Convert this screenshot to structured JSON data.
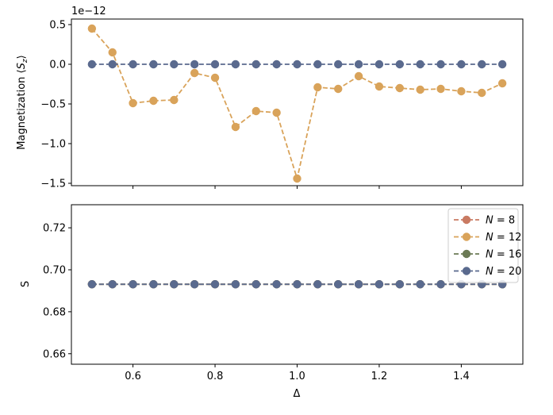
{
  "chart_data": [
    {
      "type": "line",
      "ylabel": "Magnetization ⟨S_z⟩",
      "ylabel_parts": {
        "main": "Magnetization ",
        "open": "⟨",
        "var": "S",
        "sub": "z",
        "close": "⟩"
      },
      "offset_text": "1e−12",
      "xlim": [
        0.45,
        1.55
      ],
      "ylim": [
        -1.53,
        0.57
      ],
      "yticks": [
        0.5,
        0.0,
        -0.5,
        -1.0,
        -1.5
      ],
      "ytick_labels": [
        "0.5",
        "0.0",
        "−0.5",
        "−1.0",
        "−1.5"
      ],
      "x": [
        0.5,
        0.55,
        0.6,
        0.65,
        0.7,
        0.75,
        0.8,
        0.85,
        0.9,
        0.95,
        1.0,
        1.05,
        1.1,
        1.15,
        1.2,
        1.25,
        1.3,
        1.35,
        1.4,
        1.45,
        1.5
      ],
      "series": [
        {
          "color": "#d9a35a",
          "values": [
            0.45,
            0.15,
            -0.49,
            -0.46,
            -0.45,
            -0.11,
            -0.17,
            -0.79,
            -0.59,
            -0.61,
            -1.44,
            -0.29,
            -0.31,
            -0.15,
            -0.28,
            -0.3,
            -0.32,
            -0.31,
            -0.34,
            -0.36,
            -0.24
          ]
        },
        {
          "color": "#5a6a8e",
          "values": [
            0,
            0,
            0,
            0,
            0,
            0,
            0,
            0,
            0,
            0,
            0,
            0,
            0,
            0,
            0,
            0,
            0,
            0,
            0,
            0,
            0
          ]
        }
      ]
    },
    {
      "type": "line",
      "ylabel": "S",
      "xlabel": "Δ",
      "xlim": [
        0.45,
        1.55
      ],
      "ylim": [
        0.655,
        0.731
      ],
      "xticks": [
        0.6,
        0.8,
        1.0,
        1.2,
        1.4
      ],
      "xtick_labels": [
        "0.6",
        "0.8",
        "1.0",
        "1.2",
        "1.4"
      ],
      "yticks": [
        0.72,
        0.7,
        0.68,
        0.66
      ],
      "ytick_labels": [
        "0.72",
        "0.70",
        "0.68",
        "0.66"
      ],
      "x": [
        0.5,
        0.55,
        0.6,
        0.65,
        0.7,
        0.75,
        0.8,
        0.85,
        0.9,
        0.95,
        1.0,
        1.05,
        1.1,
        1.15,
        1.2,
        1.25,
        1.3,
        1.35,
        1.4,
        1.45,
        1.5
      ],
      "legend_position": "top-right",
      "series": [
        {
          "name": "N = 8",
          "name_var": "N",
          "name_val": "8",
          "color": "#c97a62",
          "values": [
            0.6931,
            0.6931,
            0.6931,
            0.6931,
            0.6931,
            0.6931,
            0.6931,
            0.6931,
            0.6931,
            0.6931,
            0.6931,
            0.6931,
            0.6931,
            0.6931,
            0.6931,
            0.6931,
            0.6931,
            0.6931,
            0.6931,
            0.6931,
            0.6931
          ]
        },
        {
          "name": "N = 12",
          "name_var": "N",
          "name_val": "12",
          "color": "#d9a35a",
          "values": [
            0.6931,
            0.6931,
            0.6931,
            0.6931,
            0.6931,
            0.6931,
            0.6931,
            0.6931,
            0.6931,
            0.6931,
            0.6931,
            0.6931,
            0.6931,
            0.6931,
            0.6931,
            0.6931,
            0.6931,
            0.6931,
            0.6931,
            0.6931,
            0.6931
          ]
        },
        {
          "name": "N = 16",
          "name_var": "N",
          "name_val": "16",
          "color": "#6b7a55",
          "values": [
            0.6931,
            0.6931,
            0.6931,
            0.6931,
            0.6931,
            0.6931,
            0.6931,
            0.6931,
            0.6931,
            0.6931,
            0.6931,
            0.6931,
            0.6931,
            0.6931,
            0.6931,
            0.6931,
            0.6931,
            0.6931,
            0.6931,
            0.6931,
            0.6931
          ]
        },
        {
          "name": "N = 20",
          "name_var": "N",
          "name_val": "20",
          "color": "#5a6a8e",
          "values": [
            0.6931,
            0.6931,
            0.6931,
            0.6931,
            0.6931,
            0.6931,
            0.6931,
            0.6931,
            0.6931,
            0.6931,
            0.6931,
            0.6931,
            0.6931,
            0.6931,
            0.6931,
            0.6931,
            0.6931,
            0.6931,
            0.6931,
            0.6931,
            0.6931
          ]
        }
      ]
    }
  ]
}
